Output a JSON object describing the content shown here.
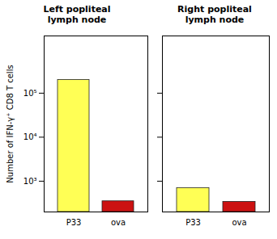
{
  "chart_data": [
    {
      "type": "bar",
      "title": "Left popliteal\nlymph node",
      "categories": [
        "P33",
        "ova"
      ],
      "values": [
        200000,
        350
      ],
      "colors": [
        "#ffff55",
        "#cc1111"
      ],
      "log": "y",
      "ylim": [
        200,
        2000000
      ],
      "yticks": [
        {
          "value": 1000,
          "label": "10³"
        },
        {
          "value": 10000,
          "label": "10⁴"
        },
        {
          "value": 100000,
          "label": "10⁵"
        }
      ],
      "ylabel": "Number of IFN-γ⁺ CD8 T cells",
      "grid": false
    },
    {
      "type": "bar",
      "title": "Right popliteal\nlymph node",
      "categories": [
        "P33",
        "ova"
      ],
      "values": [
        700,
        340
      ],
      "colors": [
        "#ffff55",
        "#cc1111"
      ],
      "log": "y",
      "ylim": [
        200,
        2000000
      ],
      "yticks": [
        1000,
        10000,
        100000
      ],
      "tick_labels": "x",
      "grid": false
    }
  ]
}
